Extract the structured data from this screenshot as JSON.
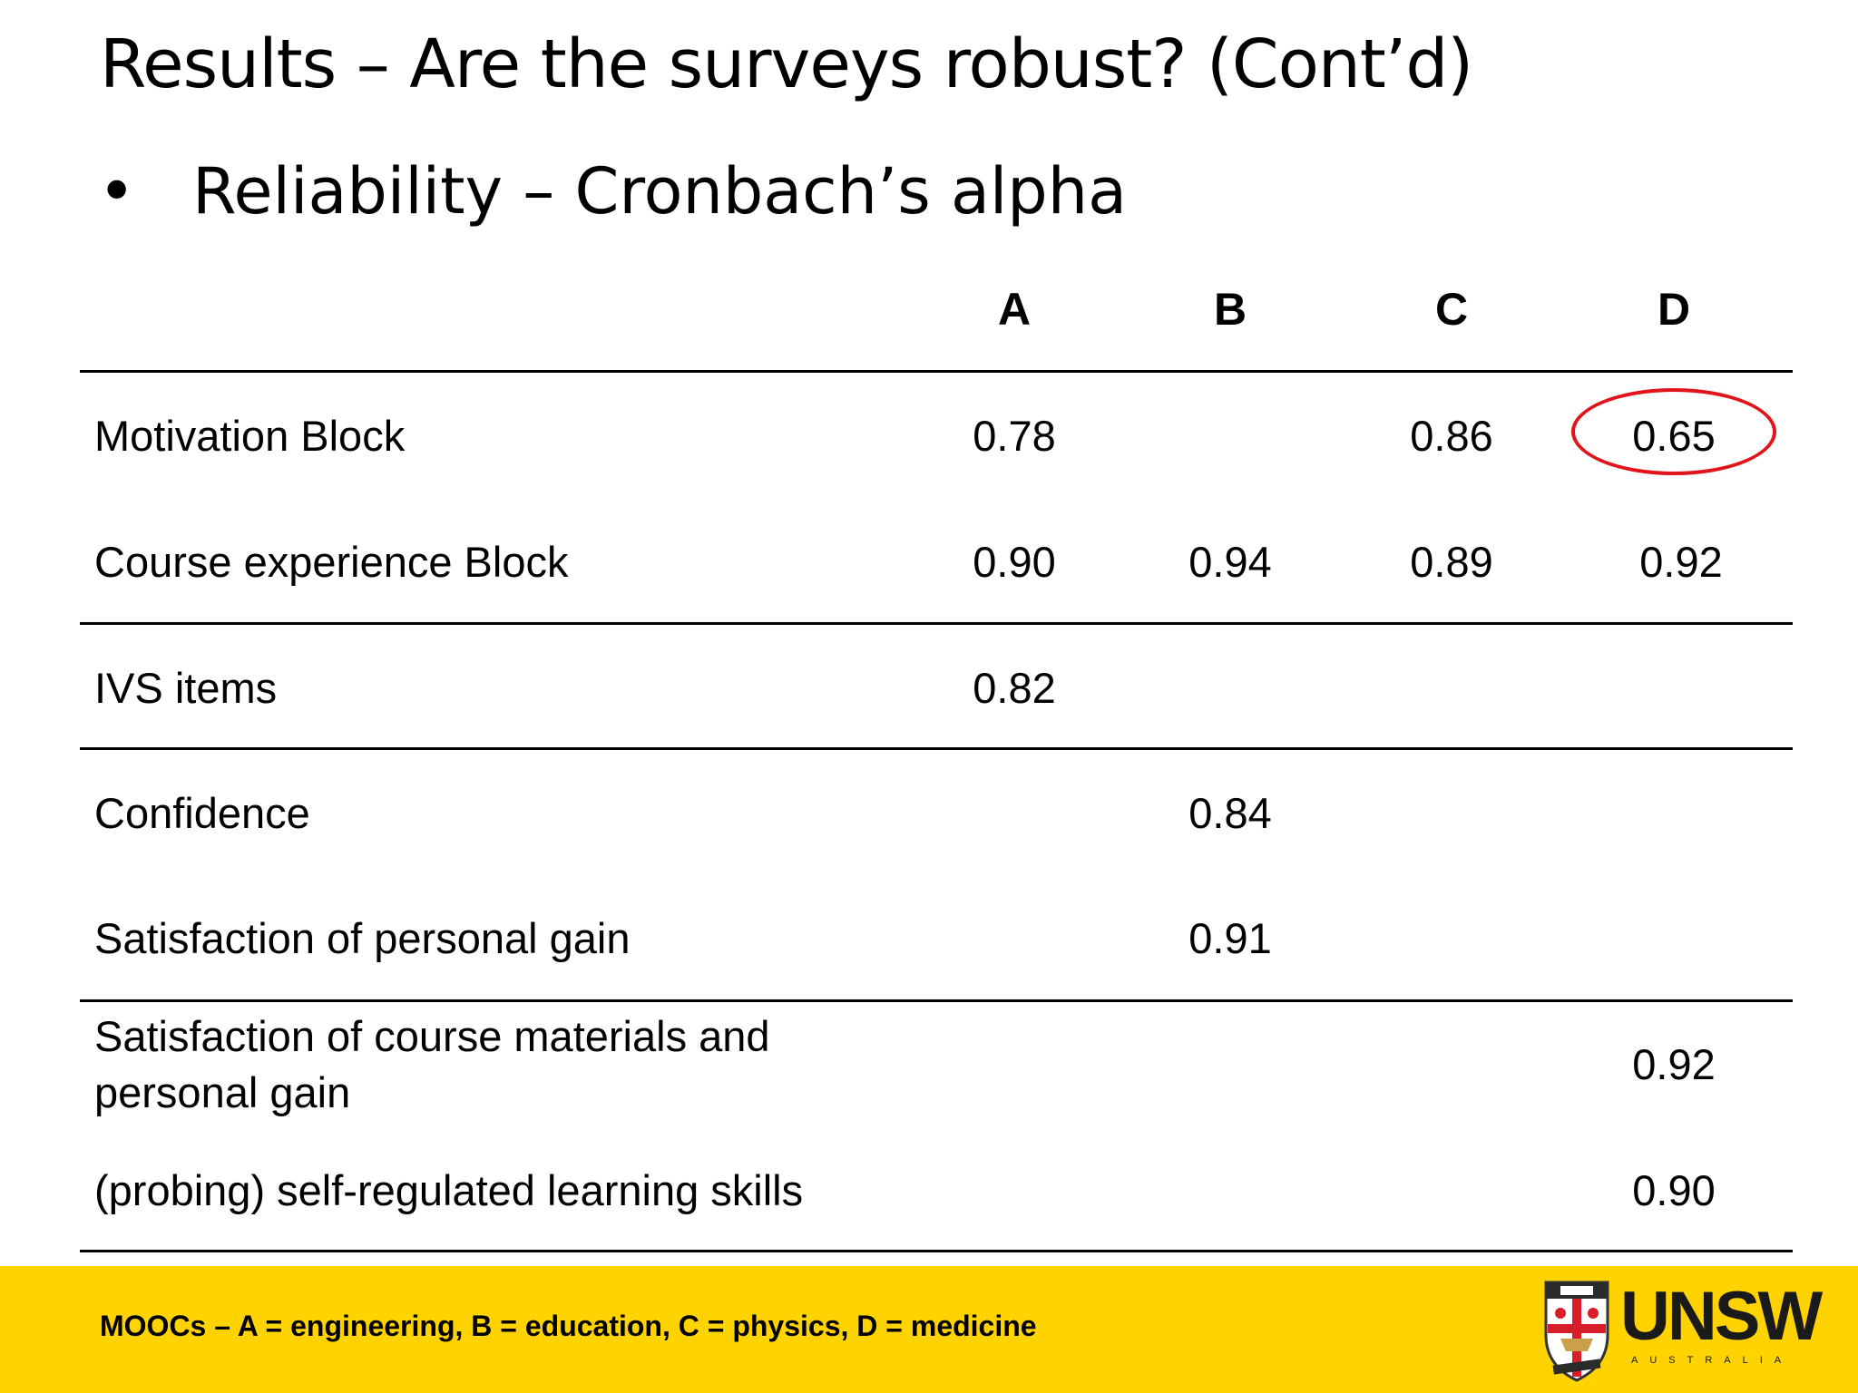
{
  "title": "Results – Are the surveys robust? (Cont’d)",
  "bullet": {
    "symbol": "•",
    "text": "Reliability – Cronbach’s alpha"
  },
  "table": {
    "columns": [
      "A",
      "B",
      "C",
      "D"
    ],
    "rows": [
      {
        "label": "Motivation Block",
        "A": "0.78",
        "B": "",
        "C": "0.86",
        "D": "0.65"
      },
      {
        "label": "Course experience Block",
        "A": "0.90",
        "B": "0.94",
        "C": "0.89",
        "D": "0.92"
      },
      {
        "label": "IVS items",
        "A": "0.82",
        "B": "",
        "C": "",
        "D": ""
      },
      {
        "label": "Confidence",
        "A": "",
        "B": "0.84",
        "C": "",
        "D": ""
      },
      {
        "label": "Satisfaction of personal gain",
        "A": "",
        "B": "0.91",
        "C": "",
        "D": ""
      },
      {
        "label_line1": "Satisfaction of course materials and",
        "label_line2": "personal gain",
        "A": "",
        "B": "",
        "C": "",
        "D": "0.92"
      },
      {
        "label": "(probing) self-regulated learning skills",
        "A": "",
        "B": "",
        "C": "",
        "D": "0.90"
      }
    ],
    "highlight_color": "#e3131b"
  },
  "footer": {
    "note": "MOOCs – A = engineering, B = education, C = physics, D = medicine",
    "background": "#ffd300",
    "logo_text": "UNSW",
    "logo_subtext": "AUSTRALIA"
  }
}
